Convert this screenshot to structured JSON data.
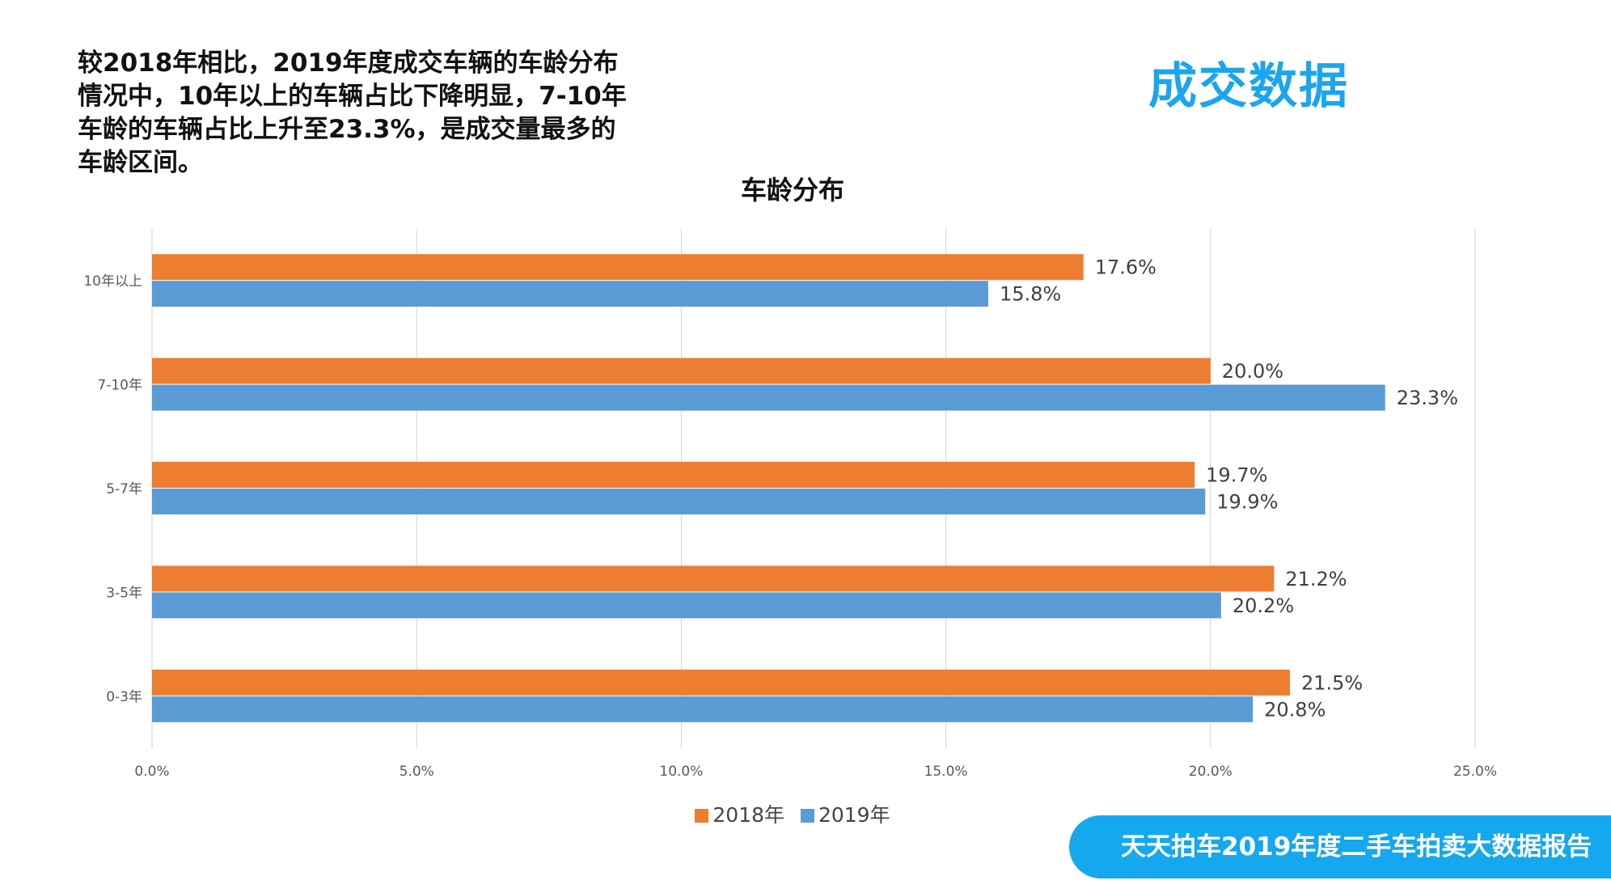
{
  "intro_text": "较2018年相比，2019年度成交车辆的车龄分布情况中，10年以上的车辆占比下降明显，7-10年车龄的车辆占比上升至23.3%，是成交量最多的车龄区间。",
  "section_title": "成交数据",
  "footer_banner": "天天拍车2019年度二手车拍卖大数据报告",
  "colors": {
    "series_2018": "#ed7d31",
    "series_2019": "#5b9bd5",
    "accent": "#1aa6ee"
  },
  "chart_data": {
    "type": "bar",
    "orientation": "horizontal",
    "title": "车龄分布",
    "categories": [
      "10年以上",
      "7-10年",
      "5-7年",
      "3-5年",
      "0-3年"
    ],
    "series": [
      {
        "name": "2018年",
        "values": [
          17.6,
          20.0,
          19.7,
          21.2,
          21.5
        ],
        "labels": [
          "17.6%",
          "20.0%",
          "19.7%",
          "21.2%",
          "21.5%"
        ]
      },
      {
        "name": "2019年",
        "values": [
          15.8,
          23.3,
          19.9,
          20.2,
          20.8
        ],
        "labels": [
          "15.8%",
          "23.3%",
          "19.9%",
          "20.2%",
          "20.8%"
        ]
      }
    ],
    "xlim": [
      0,
      25
    ],
    "xticks": [
      "0.0%",
      "5.0%",
      "10.0%",
      "15.0%",
      "20.0%",
      "25.0%"
    ],
    "grid": true,
    "legend": "bottom"
  }
}
